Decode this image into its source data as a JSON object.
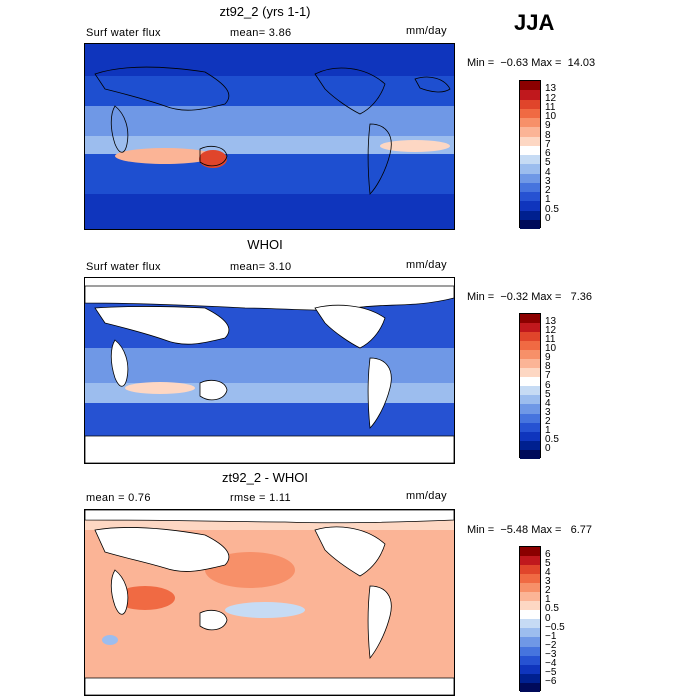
{
  "season": "JJA",
  "panels": [
    {
      "title": "zt92_2 (yrs 1-1)",
      "left_label": "Surf water flux",
      "mid_label": "mean=   3.86",
      "units": "mm/day",
      "minmax": "Min =  −0.63 Max =  14.03",
      "colorbar_labels": [
        "13",
        "12",
        "11",
        "10",
        "9",
        "8",
        "7",
        "6",
        "5",
        "4",
        "3",
        "2",
        "1",
        "0.5",
        "0"
      ]
    },
    {
      "title": "WHOI",
      "left_label": "Surf water flux",
      "mid_label": "mean=   3.10",
      "units": "mm/day",
      "minmax": "Min =  −0.32 Max =   7.36",
      "colorbar_labels": [
        "13",
        "12",
        "11",
        "10",
        "9",
        "8",
        "7",
        "6",
        "5",
        "4",
        "3",
        "2",
        "1",
        "0.5",
        "0"
      ]
    },
    {
      "title": "zt92_2 - WHOI",
      "left_label": "mean =   0.76",
      "mid_label": "rmse =   1.11",
      "units": "mm/day",
      "minmax": "Min =  −5.48 Max =   6.77",
      "colorbar_labels": [
        "6",
        "5",
        "4",
        "3",
        "2",
        "1",
        "0.5",
        "0",
        "−0.5",
        "−1",
        "−2",
        "−3",
        "−4",
        "−5",
        "−6"
      ]
    }
  ],
  "colors": {
    "abs_scale": [
      "#8b0000",
      "#c0181d",
      "#e0452b",
      "#f06a43",
      "#f79069",
      "#fbb496",
      "#fdd7c3",
      "#ffffff",
      "#c6dbf4",
      "#9cbdee",
      "#6f98e6",
      "#4674de",
      "#2652d2",
      "#0f35bd",
      "#00208f",
      "#000a5a"
    ],
    "diff_scale": [
      "#8b0000",
      "#c0181d",
      "#e0452b",
      "#f06a43",
      "#f79069",
      "#fbb496",
      "#fdd7c3",
      "#ffffff",
      "#c6dbf4",
      "#9cbdee",
      "#6f98e6",
      "#4674de",
      "#2652d2",
      "#0f35bd",
      "#00208f",
      "#000a5a"
    ]
  }
}
